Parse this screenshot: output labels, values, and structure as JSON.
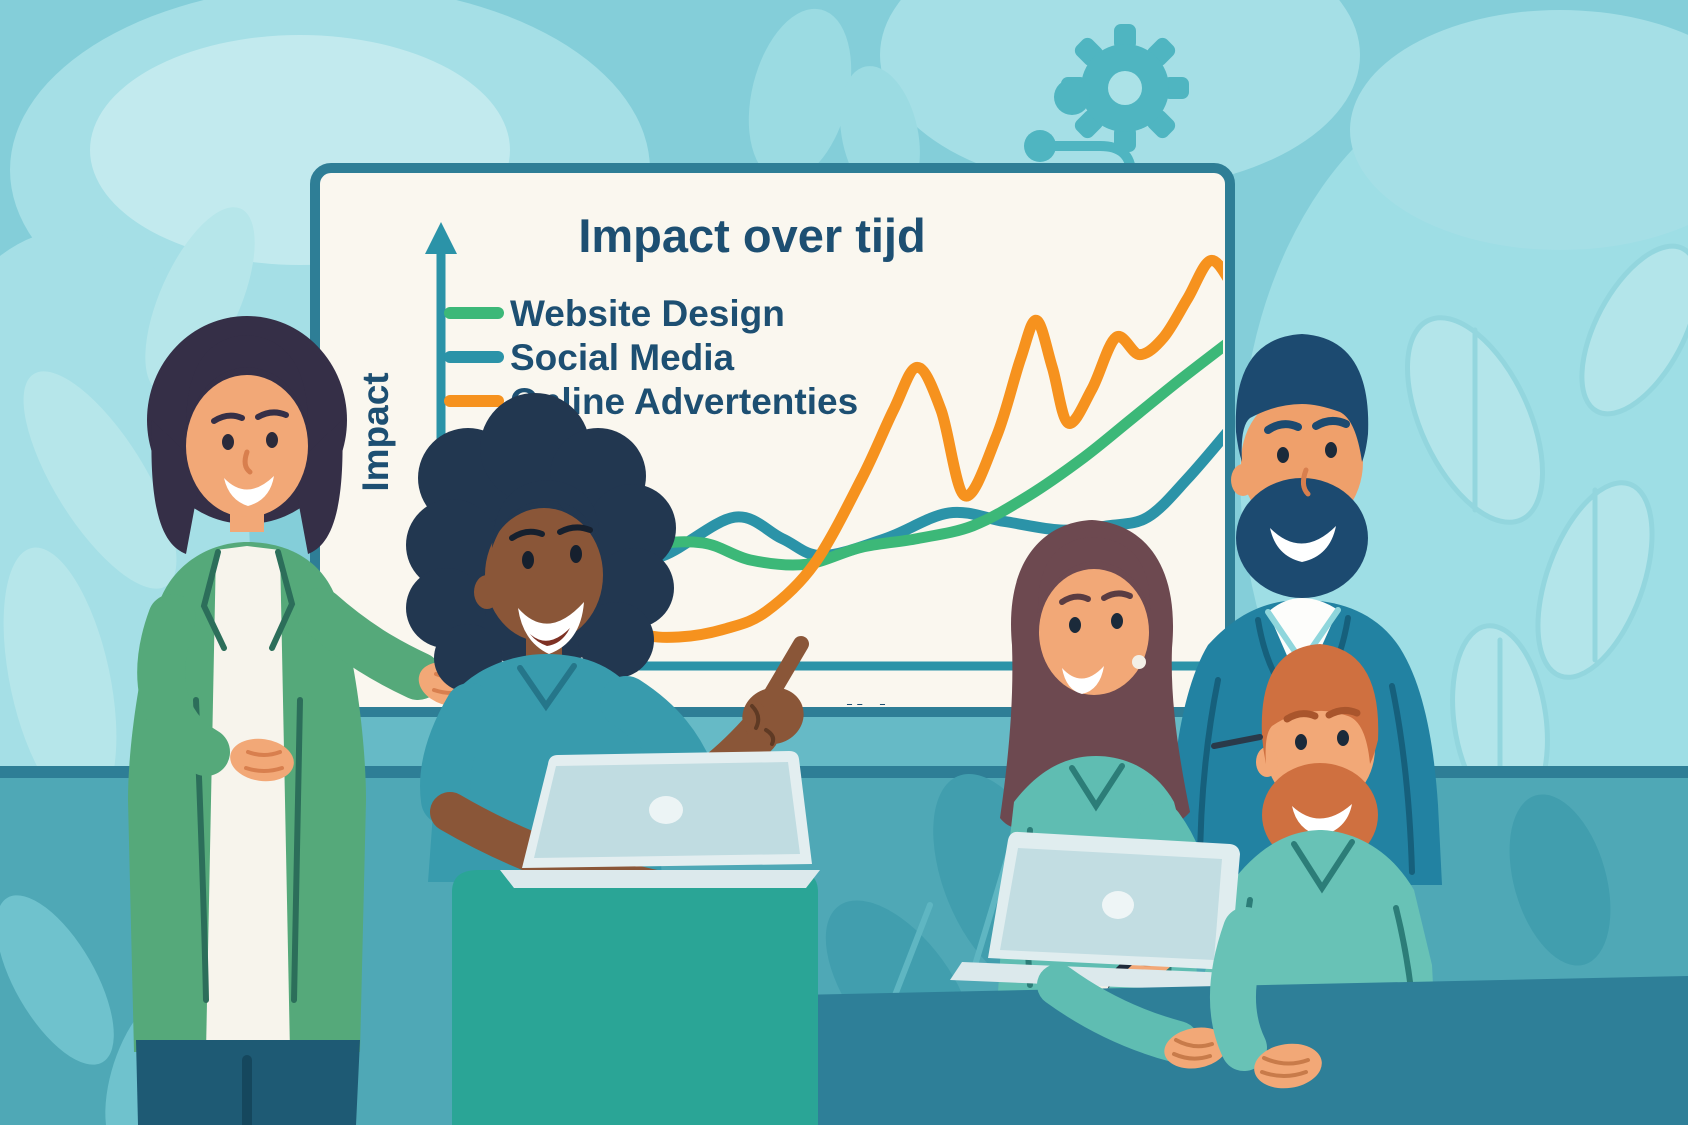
{
  "chart_data": {
    "type": "line",
    "title": "Impact over tijd",
    "xlabel": "Tijd",
    "ylabel": "Impact",
    "xlim": [
      0,
      10
    ],
    "ylim": [
      0,
      100
    ],
    "grid": false,
    "legend_position": "top-left",
    "axes_have_tick_labels": false,
    "series": [
      {
        "name": "Website Design",
        "color": "#3cb878",
        "points": [
          [
            2.0,
            21
          ],
          [
            2.6,
            28
          ],
          [
            3.3,
            29
          ],
          [
            3.9,
            25
          ],
          [
            4.6,
            24
          ],
          [
            5.3,
            28
          ],
          [
            6.0,
            30
          ],
          [
            6.7,
            33
          ],
          [
            7.4,
            40
          ],
          [
            8.1,
            49
          ],
          [
            8.7,
            58
          ],
          [
            9.3,
            67
          ],
          [
            10,
            77
          ]
        ]
      },
      {
        "name": "Social Media",
        "color": "#2b93a8",
        "points": [
          [
            2.0,
            23
          ],
          [
            2.8,
            26
          ],
          [
            3.7,
            35
          ],
          [
            4.3,
            30
          ],
          [
            4.8,
            26
          ],
          [
            5.6,
            30
          ],
          [
            6.4,
            36
          ],
          [
            7.1,
            34
          ],
          [
            7.8,
            32
          ],
          [
            8.4,
            33
          ],
          [
            8.9,
            35
          ],
          [
            9.4,
            44
          ],
          [
            10,
            57
          ]
        ]
      },
      {
        "name": "Online Advertenties",
        "color": "#f6921e",
        "points": [
          [
            2.0,
            14
          ],
          [
            2.5,
            8
          ],
          [
            3.0,
            7
          ],
          [
            3.6,
            9
          ],
          [
            4.1,
            13
          ],
          [
            4.7,
            24
          ],
          [
            5.3,
            44
          ],
          [
            5.7,
            60
          ],
          [
            6.0,
            70
          ],
          [
            6.3,
            60
          ],
          [
            6.6,
            40
          ],
          [
            7.0,
            54
          ],
          [
            7.3,
            72
          ],
          [
            7.5,
            81
          ],
          [
            7.7,
            70
          ],
          [
            7.9,
            57
          ],
          [
            8.2,
            65
          ],
          [
            8.5,
            77
          ],
          [
            8.8,
            73
          ],
          [
            9.1,
            77
          ],
          [
            9.4,
            86
          ],
          [
            9.7,
            95
          ],
          [
            10,
            88
          ]
        ]
      }
    ]
  },
  "palette": {
    "background": "#84ced9",
    "background_blob": "#a5dfe6",
    "wall_lower": "#4fa8b6",
    "wall_divider": "#2e7e96",
    "whiteboard_fill": "#faf7ef",
    "whiteboard_border": "#2e7e96",
    "heading_text": "#1d4f72",
    "axis": "#2b93a8",
    "gear_icon": "#4fb5c1",
    "podium": "#2aa596",
    "table": "#2e7f98",
    "laptop_lid": "#c2dde2"
  }
}
